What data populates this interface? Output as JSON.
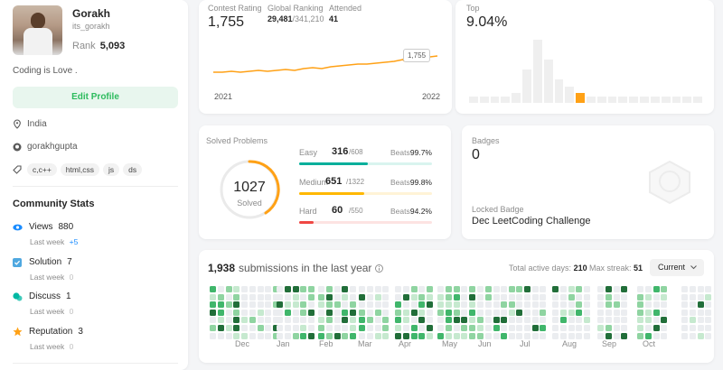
{
  "profile": {
    "name": "Gorakh",
    "username": "its_gorakh",
    "rank_label": "Rank",
    "rank_value": "5,093",
    "bio": "Coding is Love .",
    "edit_button": "Edit Profile",
    "location": "India",
    "github": "gorakhgupta",
    "skills": [
      "c,c++",
      "html,css",
      "js",
      "ds"
    ]
  },
  "community": {
    "title": "Community Stats",
    "items": [
      {
        "label": "Views",
        "value": "880",
        "week_label": "Last week",
        "week_value": "+5",
        "icon": "eye-icon",
        "color": "#1a8cff"
      },
      {
        "label": "Solution",
        "value": "7",
        "week_label": "Last week",
        "week_value": "0",
        "icon": "check-square-icon",
        "color": "#4fa8e0"
      },
      {
        "label": "Discuss",
        "value": "1",
        "week_label": "Last week",
        "week_value": "0",
        "icon": "chat-icon",
        "color": "#00b8a3"
      },
      {
        "label": "Reputation",
        "value": "3",
        "week_label": "Last week",
        "week_value": "0",
        "icon": "star-icon",
        "color": "#ffa116"
      }
    ]
  },
  "contest": {
    "rating_label": "Contest Rating",
    "rating_value": "1,755",
    "global_label": "Global Ranking",
    "global_value": "29,481",
    "global_total": "/341,210",
    "attended_label": "Attended",
    "attended_value": "41",
    "tooltip": "1,755",
    "x_start": "2021",
    "x_end": "2022"
  },
  "top": {
    "label": "Top",
    "value": "9.04%",
    "histogram": [
      2,
      2,
      2,
      2,
      3,
      10,
      19,
      13,
      7,
      5,
      3,
      2,
      2,
      2,
      2,
      2,
      2,
      2,
      2,
      2,
      2,
      2
    ],
    "highlight_index": 10
  },
  "solved": {
    "title": "Solved Problems",
    "count": "1027",
    "count_label": "Solved",
    "rows": [
      {
        "label": "Easy",
        "value": "316",
        "total": "/608",
        "beats_label": "Beats",
        "beats": "99.7%",
        "color": "#00af9b",
        "track": "#d9f4ef",
        "fraction": 0.52
      },
      {
        "label": "Medium",
        "value": "651",
        "total": "/1322",
        "beats_label": "Beats",
        "beats": "99.8%",
        "color": "#ffb800",
        "track": "#fff3d6",
        "fraction": 0.49
      },
      {
        "label": "Hard",
        "value": "60",
        "total": "/550",
        "beats_label": "Beats",
        "beats": "94.2%",
        "color": "#ef4743",
        "track": "#fde3e2",
        "fraction": 0.11
      }
    ]
  },
  "badges": {
    "label": "Badges",
    "count": "0",
    "locked_label": "Locked Badge",
    "locked_name": "Dec LeetCoding Challenge"
  },
  "submissions": {
    "count": "1,938",
    "text": "submissions in the last year",
    "active_label": "Total active days:",
    "active_value": "210",
    "streak_label": "Max streak:",
    "streak_value": "51",
    "dropdown": "Current",
    "months": [
      "Dec",
      "Jan",
      "Feb",
      "Mar",
      "Apr",
      "May",
      "Jun",
      "Jul",
      "Aug",
      "Sep",
      "Oct"
    ]
  }
}
